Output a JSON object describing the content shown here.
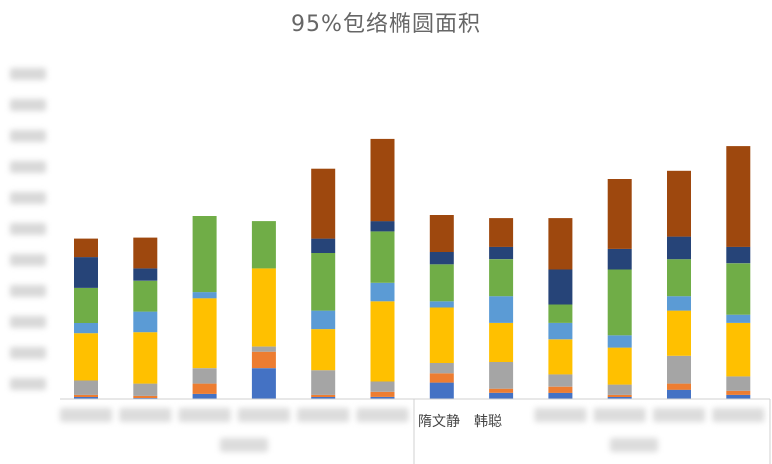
{
  "chart_data": {
    "type": "bar",
    "stacked": true,
    "title": "95%包络椭圆面积",
    "xlabel": "",
    "ylabel": "",
    "categories": [
      "",
      "",
      "",
      "",
      "",
      "",
      "",
      "",
      "",
      "",
      "",
      ""
    ],
    "group_labels": [
      {
        "category_index": 7,
        "text": "隋文静　韩聪"
      }
    ],
    "y_tick_labels_visible": false,
    "grid": false,
    "legend": "none",
    "ylim": [
      0,
      320
    ],
    "series": [
      {
        "color": "#4472C4",
        "values": [
          2,
          1,
          5,
          30,
          2,
          2,
          16,
          6,
          6,
          2,
          9,
          4
        ]
      },
      {
        "color": "#ED7D31",
        "values": [
          2,
          2,
          10,
          16,
          2,
          5,
          9,
          4,
          6,
          2,
          6,
          4
        ]
      },
      {
        "color": "#A5A5A5",
        "values": [
          14,
          12,
          15,
          5,
          24,
          10,
          10,
          26,
          12,
          10,
          27,
          14
        ]
      },
      {
        "color": "#FFC000",
        "values": [
          46,
          50,
          68,
          76,
          40,
          78,
          54,
          38,
          34,
          36,
          44,
          52
        ]
      },
      {
        "color": "#5B9BD5",
        "values": [
          10,
          20,
          6,
          0,
          18,
          18,
          6,
          26,
          16,
          12,
          14,
          8
        ]
      },
      {
        "color": "#70AD47",
        "values": [
          34,
          30,
          74,
          46,
          56,
          50,
          36,
          36,
          18,
          64,
          36,
          50
        ]
      },
      {
        "color": "#264478",
        "values": [
          30,
          12,
          0,
          0,
          14,
          10,
          12,
          12,
          34,
          20,
          22,
          16
        ]
      },
      {
        "color": "#9E480E",
        "values": [
          18,
          30,
          0,
          0,
          68,
          80,
          36,
          28,
          50,
          68,
          64,
          98
        ]
      }
    ]
  }
}
